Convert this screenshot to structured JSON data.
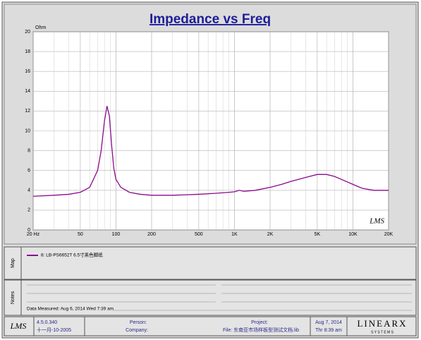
{
  "chart_data": {
    "type": "line",
    "title": "Impedance vs Freq",
    "y_label": "Ohm",
    "annotation": "LMS",
    "x": [
      20,
      30,
      40,
      50,
      60,
      70,
      75,
      80,
      84,
      88,
      92,
      96,
      100,
      110,
      130,
      160,
      200,
      300,
      500,
      700,
      900,
      1000,
      1100,
      1200,
      1500,
      2000,
      2500,
      3000,
      4000,
      5000,
      6000,
      7000,
      8000,
      10000,
      12000,
      15000,
      20000
    ],
    "series": [
      {
        "name": "8: LB-PS6652T 6.5寸黑色脚纸",
        "color": "#8b0a8b",
        "values": [
          3.4,
          3.5,
          3.6,
          3.8,
          4.3,
          6,
          8,
          11,
          12.5,
          11.5,
          8.5,
          6.2,
          5.1,
          4.3,
          3.8,
          3.6,
          3.5,
          3.5,
          3.6,
          3.7,
          3.8,
          3.85,
          4.0,
          3.9,
          4.0,
          4.3,
          4.6,
          4.9,
          5.3,
          5.6,
          5.6,
          5.4,
          5.1,
          4.6,
          4.2,
          4.0,
          4.0
        ]
      }
    ],
    "xlim": [
      20,
      20000
    ],
    "xscale": "log",
    "xticks": [
      {
        "value": 20,
        "label": "20 Hz"
      },
      50,
      100,
      200,
      500,
      {
        "value": 1000,
        "label": "1K"
      },
      {
        "value": 2000,
        "label": "2K"
      },
      {
        "value": 5000,
        "label": "5K"
      },
      {
        "value": 10000,
        "label": "10K"
      },
      {
        "value": 20000,
        "label": "20K"
      }
    ],
    "ylim": [
      0,
      20
    ],
    "yticks": [
      0,
      2,
      4,
      6,
      8,
      10,
      12,
      14,
      16,
      18,
      20
    ],
    "grid": true
  },
  "map": {
    "label": "Map"
  },
  "notes": {
    "label": "Notes",
    "measured": "Data Measured: Aug 6, 2014  Wed  7:39 am"
  },
  "footer": {
    "logo": "LMS",
    "version": "4.5.0.340",
    "build_date": "十一月-10-2005",
    "person": "Person:",
    "company": "Company:",
    "project": "Project:",
    "file": "File: 东南亚市场样板型测试文档.lib",
    "date": "Aug  7, 2014",
    "time": "Thr  8:39 am",
    "brand": "LINEARX",
    "brand_sub": "S Y S T E M S"
  }
}
